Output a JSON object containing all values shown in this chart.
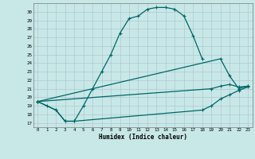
{
  "xlabel": "Humidex (Indice chaleur)",
  "xlim": [
    -0.5,
    23.5
  ],
  "ylim": [
    16.5,
    31.0
  ],
  "xticks": [
    0,
    1,
    2,
    3,
    4,
    5,
    6,
    7,
    8,
    9,
    10,
    11,
    12,
    13,
    14,
    15,
    16,
    17,
    18,
    19,
    20,
    21,
    22,
    23
  ],
  "yticks": [
    17,
    18,
    19,
    20,
    21,
    22,
    23,
    24,
    25,
    26,
    27,
    28,
    29,
    30
  ],
  "bg_color": "#c8e8e8",
  "grid_color": "#b0c8d0",
  "line_color": "#006666",
  "line1_x": [
    0,
    1,
    2,
    3,
    4,
    5,
    6,
    7,
    8,
    9,
    10,
    11,
    12,
    13,
    14,
    15,
    16,
    17,
    18
  ],
  "line1_y": [
    19.5,
    19.0,
    18.5,
    17.2,
    17.2,
    19.0,
    21.0,
    23.0,
    25.0,
    27.5,
    29.2,
    29.5,
    30.3,
    30.5,
    30.5,
    30.3,
    29.5,
    27.2,
    24.5
  ],
  "line2_x": [
    0,
    20,
    21,
    22,
    23
  ],
  "line2_y": [
    19.5,
    24.5,
    22.5,
    21.0,
    21.3
  ],
  "line3_x": [
    0,
    19,
    20,
    21,
    22,
    23
  ],
  "line3_y": [
    19.5,
    21.0,
    21.3,
    21.5,
    21.2,
    21.3
  ],
  "line4_x": [
    0,
    2,
    3,
    4,
    18,
    19,
    20,
    21,
    22,
    23
  ],
  "line4_y": [
    19.5,
    18.5,
    17.2,
    17.2,
    18.5,
    19.0,
    19.8,
    20.3,
    20.8,
    21.2
  ]
}
